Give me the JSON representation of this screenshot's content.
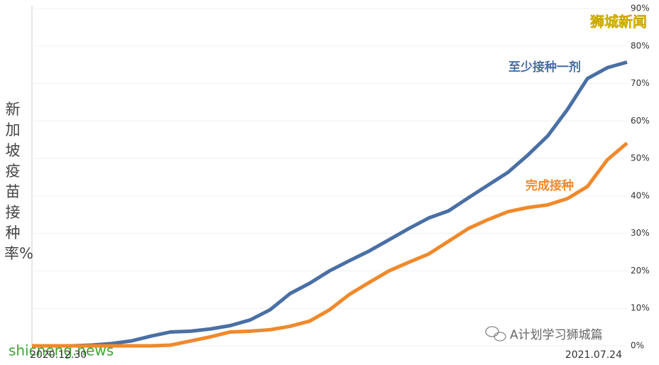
{
  "chart_data": {
    "type": "line",
    "y_label": "新加坡疫苗接种率%",
    "categories": [
      "2020.12.30",
      null,
      null,
      null,
      null,
      null,
      null,
      null,
      null,
      null,
      null,
      null,
      null,
      null,
      null,
      null,
      null,
      null,
      null,
      null,
      null,
      null,
      null,
      null,
      null,
      null,
      null,
      null,
      null,
      null,
      "2021.07.24"
    ],
    "series": [
      {
        "name": "至少接种一剂",
        "color": "#4a6fa5",
        "values": [
          0,
          0,
          0,
          0.2,
          0.6,
          1.3,
          2.6,
          3.7,
          3.9,
          4.5,
          5.4,
          6.9,
          9.6,
          13.9,
          16.7,
          20,
          22.7,
          25.3,
          28.3,
          31.3,
          34.1,
          36,
          39.5,
          42.9,
          46.3,
          50.9,
          56,
          63.1,
          71.3,
          74.2,
          75.7
        ]
      },
      {
        "name": "完成接种",
        "color": "#f0892b",
        "values": [
          0,
          0,
          0,
          0,
          0,
          0,
          0,
          0.2,
          1.3,
          2.4,
          3.7,
          3.9,
          4.3,
          5.2,
          6.6,
          9.6,
          13.7,
          16.9,
          20,
          22.3,
          24.5,
          27.9,
          31.3,
          33.7,
          35.8,
          36.9,
          37.6,
          39.3,
          42.5,
          49.6,
          54.1
        ]
      }
    ],
    "ylim": [
      0,
      90
    ],
    "yticks": [
      {
        "value": 0,
        "label": "0%"
      },
      {
        "value": 10,
        "label": "10%"
      },
      {
        "value": 20,
        "label": "20%"
      },
      {
        "value": 30,
        "label": "30%"
      },
      {
        "value": 40,
        "label": "40%"
      },
      {
        "value": 50,
        "label": "50%"
      },
      {
        "value": 60,
        "label": "60%"
      },
      {
        "value": 70,
        "label": "70%"
      },
      {
        "value": 80,
        "label": "80%"
      },
      {
        "value": 90,
        "label": "90%"
      }
    ],
    "grid": true,
    "watermarks": [
      "狮城新闻",
      "shicheng.news",
      "A计划学习狮城篇"
    ]
  }
}
